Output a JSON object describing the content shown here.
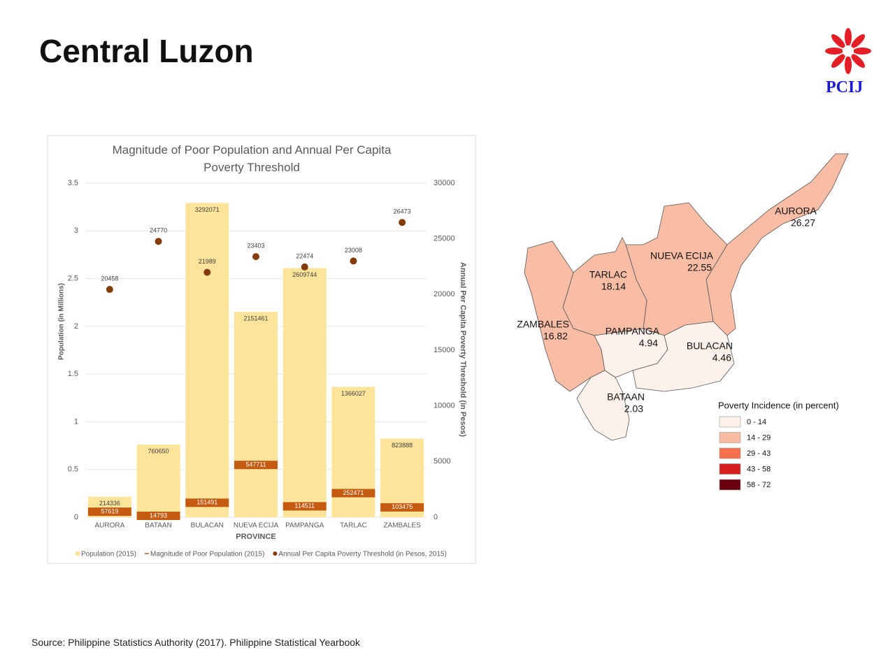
{
  "header": {
    "title": "Central Luzon",
    "logo": "PCIJ"
  },
  "chart_data": {
    "type": "bar",
    "title": "Magnitude of Poor Population and Annual Per Capita Poverty Threshold",
    "x_label": "PROVINCE",
    "y_label": "Population (in Millions)",
    "y2_label": "Annual Per Capita Poverty Threshold (in Pesos)",
    "categories": [
      "AURORA",
      "BATAAN",
      "BULACAN",
      "NUEVA ECIJA",
      "PAMPANGA",
      "TARLAC",
      "ZAMBALES"
    ],
    "series": [
      {
        "name": "Population (2015)",
        "kind": "bar",
        "color": "#fde49b",
        "values": [
          0.214336,
          0.76065,
          3.292071,
          2.151461,
          2.609744,
          1.366027,
          0.823888
        ],
        "value_labels": [
          "214336",
          "760650",
          "3292071",
          "2151461",
          "2609744",
          "1366027",
          "823888"
        ]
      },
      {
        "name": "Magnitude of Poor Population (2015)",
        "kind": "band",
        "color": "#c55a11",
        "values": [
          0.057619,
          0.014793,
          0.151491,
          0.547711,
          0.114511,
          0.252471,
          0.103475
        ],
        "value_labels": [
          "57619",
          "14793",
          "151491",
          "547711",
          "114511",
          "252471",
          "103475"
        ]
      },
      {
        "name": "Annual Per Capita Poverty Threshold (in Pesos, 2015)",
        "kind": "dot",
        "axis": "y2",
        "color": "#843c0c",
        "values": [
          20458,
          24770,
          21989,
          23403,
          22474,
          23008,
          26473
        ]
      }
    ],
    "ylim": [
      0,
      3.5
    ],
    "yticks": [
      0,
      0.5,
      1,
      1.5,
      2,
      2.5,
      3,
      3.5
    ],
    "y2lim": [
      0,
      30000
    ],
    "y2ticks": [
      0,
      5000,
      10000,
      15000,
      20000,
      25000,
      30000
    ],
    "grid": true,
    "legend": "bottom"
  },
  "map": {
    "regions": [
      {
        "name": "AURORA",
        "value": 26.27,
        "color": "#f8bda4"
      },
      {
        "name": "NUEVA ECIJA",
        "value": 22.55,
        "color": "#f8bda4"
      },
      {
        "name": "TARLAC",
        "value": 18.14,
        "color": "#f8bda4"
      },
      {
        "name": "ZAMBALES",
        "value": 16.82,
        "color": "#f8bda4"
      },
      {
        "name": "PAMPANGA",
        "value": 4.94,
        "color": "#fdf1ec"
      },
      {
        "name": "BULACAN",
        "value": 4.46,
        "color": "#fdf1ec"
      },
      {
        "name": "BATAAN",
        "value": 2.03,
        "color": "#fdf1ec"
      }
    ],
    "legend": {
      "title": "Poverty Incidence (in percent)",
      "items": [
        {
          "label": "0 - 14",
          "color": "#fdf0ea"
        },
        {
          "label": "14 - 29",
          "color": "#f9bba0"
        },
        {
          "label": "29 - 43",
          "color": "#f4704f"
        },
        {
          "label": "43 - 58",
          "color": "#d7201e"
        },
        {
          "label": "58 - 72",
          "color": "#6b0010"
        }
      ]
    }
  },
  "source": "Source: Philippine Statistics Authority (2017). Philippine Statistical Yearbook"
}
